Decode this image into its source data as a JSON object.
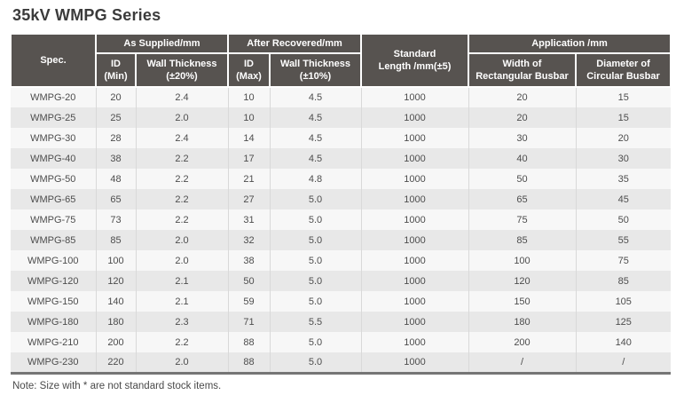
{
  "title": "35kV WMPG Series",
  "note": "Note: Size with * are not standard stock items.",
  "colors": {
    "header_bg": "#575350",
    "row_light": "#f7f7f7",
    "row_dark": "#e8e8e8",
    "cell_text": "#4d4d4d",
    "divider": "#d9d9d9",
    "bottom_border": "#757575",
    "title_color": "#3b3b3b"
  },
  "table": {
    "header": {
      "spec": "Spec.",
      "as_supplied": "As Supplied/mm",
      "after_recovered": "After Recovered/mm",
      "standard_length_line1": "Standard",
      "standard_length_line2": "Length /mm(±5)",
      "application": "Application /mm",
      "id_min_line1": "ID",
      "id_min_line2": "(Min)",
      "wall_20_line1": "Wall Thickness",
      "wall_20_line2": "(±20%)",
      "id_max_line1": "ID",
      "id_max_line2": "(Max)",
      "wall_10_line1": "Wall Thickness",
      "wall_10_line2": "(±10%)",
      "width_rect_line1": "Width of",
      "width_rect_line2": "Rectangular Busbar",
      "dia_circ_line1": "Diameter of",
      "dia_circ_line2": "Circular Busbar"
    },
    "rows": [
      [
        "WMPG-20",
        "20",
        "2.4",
        "10",
        "4.5",
        "1000",
        "20",
        "15"
      ],
      [
        "WMPG-25",
        "25",
        "2.0",
        "10",
        "4.5",
        "1000",
        "20",
        "15"
      ],
      [
        "WMPG-30",
        "28",
        "2.4",
        "14",
        "4.5",
        "1000",
        "30",
        "20"
      ],
      [
        "WMPG-40",
        "38",
        "2.2",
        "17",
        "4.5",
        "1000",
        "40",
        "30"
      ],
      [
        "WMPG-50",
        "48",
        "2.2",
        "21",
        "4.8",
        "1000",
        "50",
        "35"
      ],
      [
        "WMPG-65",
        "65",
        "2.2",
        "27",
        "5.0",
        "1000",
        "65",
        "45"
      ],
      [
        "WMPG-75",
        "73",
        "2.2",
        "31",
        "5.0",
        "1000",
        "75",
        "50"
      ],
      [
        "WMPG-85",
        "85",
        "2.0",
        "32",
        "5.0",
        "1000",
        "85",
        "55"
      ],
      [
        "WMPG-100",
        "100",
        "2.0",
        "38",
        "5.0",
        "1000",
        "100",
        "75"
      ],
      [
        "WMPG-120",
        "120",
        "2.1",
        "50",
        "5.0",
        "1000",
        "120",
        "85"
      ],
      [
        "WMPG-150",
        "140",
        "2.1",
        "59",
        "5.0",
        "1000",
        "150",
        "105"
      ],
      [
        "WMPG-180",
        "180",
        "2.3",
        "71",
        "5.5",
        "1000",
        "180",
        "125"
      ],
      [
        "WMPG-210",
        "200",
        "2.2",
        "88",
        "5.0",
        "1000",
        "200",
        "140"
      ],
      [
        "WMPG-230",
        "220",
        "2.0",
        "88",
        "5.0",
        "1000",
        "/",
        "/"
      ]
    ]
  }
}
